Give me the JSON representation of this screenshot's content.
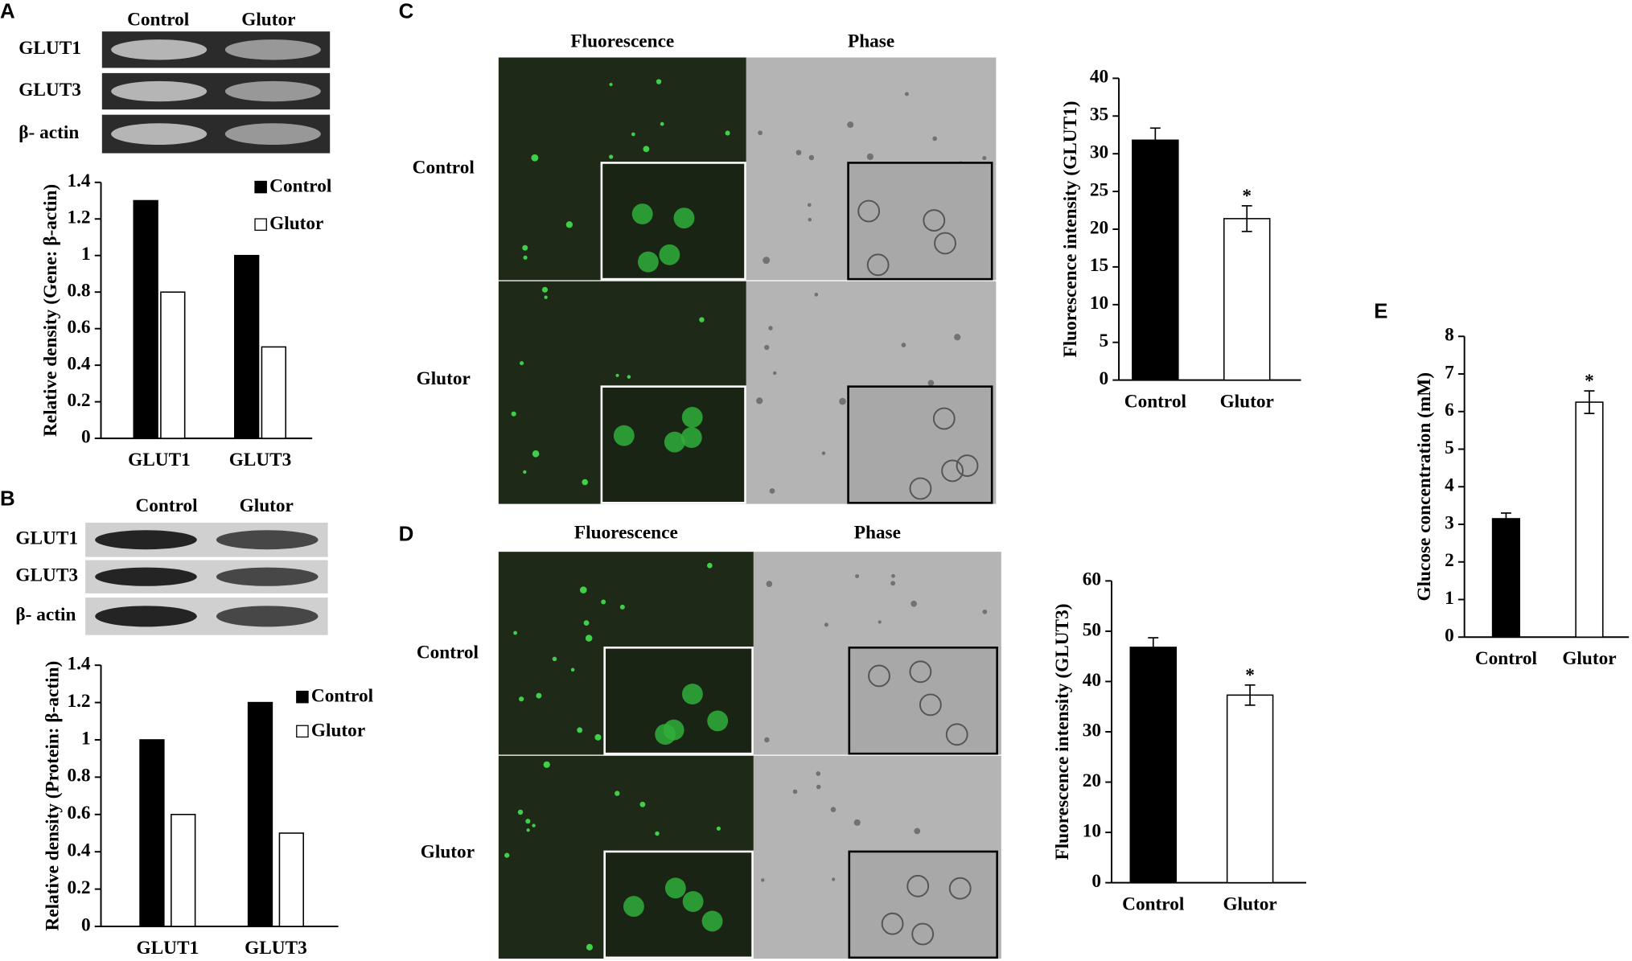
{
  "figure": {
    "panels": [
      "A",
      "B",
      "C",
      "D",
      "E"
    ],
    "blot_a": {
      "columns": [
        "Control",
        "Glutor"
      ],
      "rows": [
        "GLUT1",
        "GLUT3",
        "β- actin"
      ]
    },
    "blot_b": {
      "columns": [
        "Control",
        "Glutor"
      ],
      "rows": [
        "GLUT1",
        "GLUT3",
        "β- actin"
      ]
    },
    "micro_c": {
      "columns": [
        "Fluorescence",
        "Phase"
      ],
      "rows": [
        "Control",
        "Glutor"
      ]
    },
    "micro_d": {
      "columns": [
        "Fluorescence",
        "Phase"
      ],
      "rows": [
        "Control",
        "Glutor"
      ]
    }
  },
  "chart_data": [
    {
      "type": "bar",
      "ylabel": "Relative density (Gene: β-actin)",
      "categories": [
        "GLUT1",
        "GLUT3"
      ],
      "series": [
        {
          "name": "Control",
          "color": "#000000",
          "values": [
            1.3,
            1.0
          ]
        },
        {
          "name": "Glutor",
          "color": "#ffffff",
          "values": [
            0.8,
            0.5
          ]
        }
      ],
      "ylim": [
        0,
        1.4
      ],
      "yticks": [
        0,
        0.2,
        0.4,
        0.6,
        0.8,
        1,
        1.2,
        1.4
      ],
      "legend": "top-right"
    },
    {
      "type": "bar",
      "ylabel": "Relative density (Protein: β-actin)",
      "categories": [
        "GLUT1",
        "GLUT3"
      ],
      "series": [
        {
          "name": "Control",
          "color": "#000000",
          "values": [
            1.0,
            1.2
          ]
        },
        {
          "name": "Glutor",
          "color": "#ffffff",
          "values": [
            0.6,
            0.5
          ]
        }
      ],
      "ylim": [
        0,
        1.4
      ],
      "yticks": [
        0,
        0.2,
        0.4,
        0.6,
        0.8,
        1,
        1.2,
        1.4
      ],
      "legend": "top-right"
    },
    {
      "type": "bar",
      "ylabel": "Fluorescence intensity (GLUT1)",
      "categories": [
        "Control",
        "Glutor"
      ],
      "values": [
        31.8,
        21.4
      ],
      "errors": [
        1.6,
        1.7
      ],
      "colors": [
        "#000000",
        "#ffffff"
      ],
      "annotations": [
        {
          "text": "*",
          "category": 1
        }
      ],
      "ylim": [
        0,
        40
      ],
      "yticks": [
        0,
        5,
        10,
        15,
        20,
        25,
        30,
        35,
        40
      ]
    },
    {
      "type": "bar",
      "ylabel": "Fluorescence intensity (GLUT3)",
      "categories": [
        "Control",
        "Glutor"
      ],
      "values": [
        46.8,
        37.3
      ],
      "errors": [
        1.9,
        2.0
      ],
      "colors": [
        "#000000",
        "#ffffff"
      ],
      "annotations": [
        {
          "text": "*",
          "category": 1
        }
      ],
      "ylim": [
        0,
        60
      ],
      "yticks": [
        0,
        10,
        20,
        30,
        40,
        50,
        60
      ]
    },
    {
      "type": "bar",
      "ylabel": "Glucose concentration (mM)",
      "categories": [
        "Control",
        "Glutor"
      ],
      "values": [
        3.15,
        6.25
      ],
      "errors": [
        0.15,
        0.3
      ],
      "colors": [
        "#000000",
        "#ffffff"
      ],
      "annotations": [
        {
          "text": "*",
          "category": 1
        }
      ],
      "ylim": [
        0,
        8
      ],
      "yticks": [
        0,
        1,
        2,
        3,
        4,
        5,
        6,
        7,
        8
      ]
    }
  ]
}
